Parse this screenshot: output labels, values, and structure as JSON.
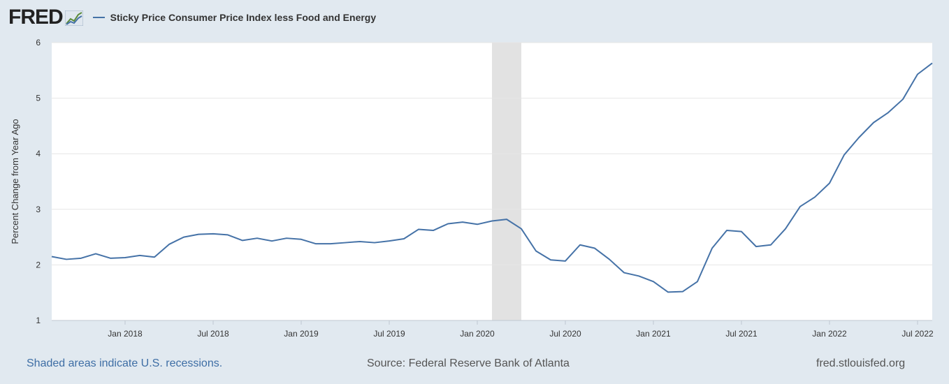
{
  "header": {
    "logo_text": "FRED",
    "logo_icon": "chart-line-icon",
    "series_label": "Sticky Price Consumer Price Index less Food and Energy"
  },
  "footer": {
    "recession_note": "Shaded areas indicate U.S. recessions.",
    "source": "Source: Federal Reserve Bank of Atlanta",
    "site": "fred.stlouisfed.org"
  },
  "colors": {
    "line": "#4572a7",
    "recession_shade": "#e2e2e2",
    "plot_background": "#ffffff",
    "page_background": "#e1e9f0",
    "gridline": "#e6e6e6"
  },
  "chart_data": {
    "type": "line",
    "title": "",
    "xlabel": "",
    "ylabel": "Percent Change from Year Ago",
    "ylim": [
      1,
      6
    ],
    "yticks": [
      1,
      2,
      3,
      4,
      5,
      6
    ],
    "xlim": [
      "2017-08",
      "2022-08"
    ],
    "xticks": [
      {
        "label": "Jan 2018",
        "date": "2018-01"
      },
      {
        "label": "Jul 2018",
        "date": "2018-07"
      },
      {
        "label": "Jan 2019",
        "date": "2019-01"
      },
      {
        "label": "Jul 2019",
        "date": "2019-07"
      },
      {
        "label": "Jan 2020",
        "date": "2020-01"
      },
      {
        "label": "Jul 2020",
        "date": "2020-07"
      },
      {
        "label": "Jan 2021",
        "date": "2021-01"
      },
      {
        "label": "Jul 2021",
        "date": "2021-07"
      },
      {
        "label": "Jan 2022",
        "date": "2022-01"
      },
      {
        "label": "Jul 2022",
        "date": "2022-07"
      }
    ],
    "recessions": [
      {
        "start": "2020-02",
        "end": "2020-04"
      }
    ],
    "grid": true,
    "legend": "top-left",
    "series": [
      {
        "name": "Sticky Price Consumer Price Index less Food and Energy",
        "x": [
          "2017-08",
          "2017-09",
          "2017-10",
          "2017-11",
          "2017-12",
          "2018-01",
          "2018-02",
          "2018-03",
          "2018-04",
          "2018-05",
          "2018-06",
          "2018-07",
          "2018-08",
          "2018-09",
          "2018-10",
          "2018-11",
          "2018-12",
          "2019-01",
          "2019-02",
          "2019-03",
          "2019-04",
          "2019-05",
          "2019-06",
          "2019-07",
          "2019-08",
          "2019-09",
          "2019-10",
          "2019-11",
          "2019-12",
          "2020-01",
          "2020-02",
          "2020-03",
          "2020-04",
          "2020-05",
          "2020-06",
          "2020-07",
          "2020-08",
          "2020-09",
          "2020-10",
          "2020-11",
          "2020-12",
          "2021-01",
          "2021-02",
          "2021-03",
          "2021-04",
          "2021-05",
          "2021-06",
          "2021-07",
          "2021-08",
          "2021-09",
          "2021-10",
          "2021-11",
          "2021-12",
          "2022-01",
          "2022-02",
          "2022-03",
          "2022-04",
          "2022-05",
          "2022-06",
          "2022-07",
          "2022-08"
        ],
        "values": [
          2.15,
          2.1,
          2.12,
          2.2,
          2.12,
          2.13,
          2.17,
          2.14,
          2.37,
          2.5,
          2.55,
          2.56,
          2.54,
          2.44,
          2.48,
          2.43,
          2.48,
          2.46,
          2.38,
          2.38,
          2.4,
          2.42,
          2.4,
          2.43,
          2.47,
          2.64,
          2.62,
          2.74,
          2.77,
          2.73,
          2.79,
          2.82,
          2.65,
          2.25,
          2.09,
          2.07,
          2.36,
          2.3,
          2.1,
          1.86,
          1.8,
          1.7,
          1.51,
          1.52,
          1.7,
          2.3,
          2.62,
          2.6,
          2.33,
          2.36,
          2.65,
          3.05,
          3.22,
          3.47,
          3.98,
          4.29,
          4.56,
          4.74,
          4.98,
          5.43,
          5.63
        ]
      }
    ]
  }
}
